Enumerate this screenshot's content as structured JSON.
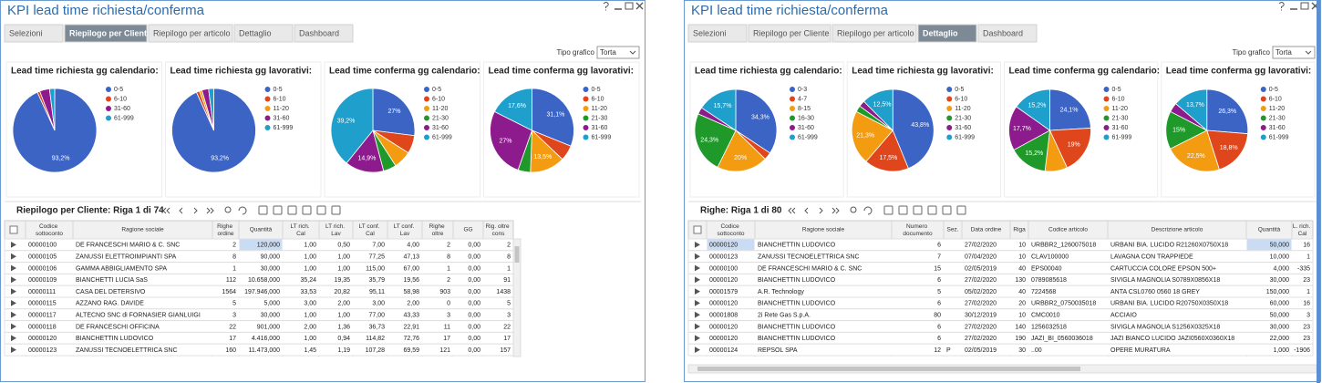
{
  "windows": [
    {
      "title": "KPI lead time richiesta/conferma",
      "tabs": [
        "Selezioni",
        "Riepilogo per Cliente",
        "Riepilogo per articolo",
        "Dettaglio",
        "Dashboard"
      ],
      "active_tab": 1,
      "chart_type_label": "Tipo grafico",
      "chart_type_value": "Torta",
      "charts": [
        {
          "type": "pie",
          "title": "Lead time richiesta gg calendario:",
          "categories": [
            "0-5",
            "6-10",
            "31-60",
            "61-999"
          ],
          "values": [
            93.2,
            1.0,
            3.8,
            2.0
          ],
          "value_labels": [
            "93,2%",
            null,
            null,
            null
          ],
          "colors": [
            "#3b64c4",
            "#e0461c",
            "#8e1b8e",
            "#1e9fcc"
          ]
        },
        {
          "type": "pie",
          "title": "Lead time richiesta gg lavorativi:",
          "categories": [
            "0-5",
            "6-10",
            "11-20",
            "31-60",
            "61-999"
          ],
          "values": [
            93.2,
            1.2,
            1.0,
            2.6,
            2.0
          ],
          "value_labels": [
            "93,2%",
            null,
            null,
            null,
            null
          ],
          "colors": [
            "#3b64c4",
            "#e0461c",
            "#f39c12",
            "#8e1b8e",
            "#1e9fcc"
          ]
        },
        {
          "type": "pie",
          "title": "Lead time conferma gg calendario:",
          "categories": [
            "0-5",
            "6-10",
            "11-20",
            "21-30",
            "31-60",
            "61-999"
          ],
          "values": [
            27,
            7,
            6.9,
            5,
            14.9,
            39.2
          ],
          "value_labels": [
            "27%",
            null,
            null,
            null,
            "14,9%",
            "39,2%"
          ],
          "colors": [
            "#3b64c4",
            "#e0461c",
            "#f39c12",
            "#1f9a2a",
            "#8e1b8e",
            "#1e9fcc"
          ]
        },
        {
          "type": "pie",
          "title": "Lead time conferma gg lavorativi:",
          "categories": [
            "0-5",
            "6-10",
            "11-20",
            "21-30",
            "31-60",
            "61-999"
          ],
          "values": [
            31.1,
            6,
            13.5,
            4.8,
            27,
            17.6
          ],
          "value_labels": [
            "31,1%",
            null,
            "13,5%",
            null,
            "27%",
            "17,6%"
          ],
          "colors": [
            "#3b64c4",
            "#e0461c",
            "#f39c12",
            "#1f9a2a",
            "#8e1b8e",
            "#1e9fcc"
          ]
        }
      ],
      "table": {
        "caption": "Riepilogo per Cliente: Riga 1 di 74",
        "columns": [
          "Codice sottoconto",
          "Ragione sociale",
          "Righe ordine",
          "Quantità",
          "LT rich. Cal",
          "LT rich. Lav",
          "LT conf. Cal",
          "LT conf. Lav",
          "Righe oltre",
          "GG",
          "Rig. oltre cons"
        ],
        "rows": [
          [
            "00000100",
            "DE FRANCESCHI MARIO & C. SNC",
            "2",
            "120,000",
            "1,00",
            "0,50",
            "7,00",
            "4,00",
            "2",
            "0,00",
            "2"
          ],
          [
            "00000105",
            "ZANUSSI ELETTROIMPIANTI SPA",
            "8",
            "90,000",
            "1,00",
            "1,00",
            "77,25",
            "47,13",
            "8",
            "0,00",
            "8"
          ],
          [
            "00000106",
            "GAMMA ABBIGLIAMENTO SPA",
            "1",
            "30,000",
            "1,00",
            "1,00",
            "115,00",
            "67,00",
            "1",
            "0,00",
            "1"
          ],
          [
            "00000109",
            "BIANCHETTI LUCIA SaS",
            "112",
            "10.658,000",
            "35,24",
            "19,35",
            "35,79",
            "19,56",
            "2",
            "0,00",
            "91"
          ],
          [
            "00000111",
            "CASA DEL DETERSIVO",
            "1564",
            "197.946,000",
            "33,53",
            "20,82",
            "95,11",
            "58,98",
            "903",
            "0,00",
            "1438"
          ],
          [
            "00000115",
            "AZZANO RAG. DAVIDE",
            "5",
            "5,000",
            "3,00",
            "2,00",
            "3,00",
            "2,00",
            "0",
            "0,00",
            "5"
          ],
          [
            "00000117",
            "ALTECNO SNC di FORNASIER GIANLUIGI",
            "3",
            "30,000",
            "1,00",
            "1,00",
            "77,00",
            "43,33",
            "3",
            "0,00",
            "3"
          ],
          [
            "00000118",
            "DE FRANCESCHI OFFICINA",
            "22",
            "901,000",
            "2,00",
            "1,36",
            "36,73",
            "22,91",
            "11",
            "0,00",
            "22"
          ],
          [
            "00000120",
            "BIANCHETTIN LUDOVICO",
            "17",
            "4.416,000",
            "1,00",
            "0,94",
            "114,82",
            "72,76",
            "17",
            "0,00",
            "17"
          ],
          [
            "00000123",
            "ZANUSSI TECNOELETTRICA SNC",
            "160",
            "11.473,000",
            "1,45",
            "1,19",
            "107,28",
            "69,59",
            "121",
            "0,00",
            "157"
          ]
        ]
      }
    },
    {
      "title": "KPI lead time richiesta/conferma",
      "tabs": [
        "Selezioni",
        "Riepilogo per Cliente",
        "Riepilogo per articolo",
        "Dettaglio",
        "Dashboard"
      ],
      "active_tab": 3,
      "chart_type_label": "Tipo grafico",
      "chart_type_value": "Torta",
      "charts": [
        {
          "type": "pie",
          "title": "Lead time richiesta gg calendario:",
          "categories": [
            "0-3",
            "4-7",
            "8-15",
            "16-30",
            "31-60",
            "61-999"
          ],
          "values": [
            34.3,
            3,
            20,
            24.3,
            2.7,
            15.7
          ],
          "value_labels": [
            "34,3%",
            null,
            "20%",
            "24,3%",
            null,
            "15,7%"
          ],
          "colors": [
            "#3b64c4",
            "#e0461c",
            "#f39c12",
            "#1f9a2a",
            "#8e1b8e",
            "#1e9fcc"
          ]
        },
        {
          "type": "pie",
          "title": "Lead time richiesta gg lavorativi:",
          "categories": [
            "0-5",
            "6-10",
            "11-20",
            "21-30",
            "31-60",
            "61-999"
          ],
          "values": [
            43.8,
            17.5,
            21.3,
            2.5,
            2.4,
            12.5
          ],
          "value_labels": [
            "43,8%",
            "17,5%",
            "21,3%",
            null,
            null,
            "12,5%"
          ],
          "colors": [
            "#3b64c4",
            "#e0461c",
            "#f39c12",
            "#1f9a2a",
            "#8e1b8e",
            "#1e9fcc"
          ]
        },
        {
          "type": "pie",
          "title": "Lead time conferma gg calendario:",
          "categories": [
            "0-5",
            "6-10",
            "11-20",
            "21-30",
            "31-60",
            "61-999"
          ],
          "values": [
            24.1,
            19,
            8.8,
            15.2,
            17.7,
            15.2
          ],
          "value_labels": [
            "24,1%",
            "19%",
            null,
            "15,2%",
            "17,7%",
            "15,2%"
          ],
          "colors": [
            "#3b64c4",
            "#e0461c",
            "#f39c12",
            "#1f9a2a",
            "#8e1b8e",
            "#1e9fcc"
          ]
        },
        {
          "type": "pie",
          "title": "Lead time conferma gg lavorativi:",
          "categories": [
            "0-5",
            "6-10",
            "11-20",
            "21-30",
            "31-60",
            "61-999"
          ],
          "values": [
            26.3,
            18.8,
            22.5,
            15,
            3.7,
            13.7
          ],
          "value_labels": [
            "26,3%",
            "18,8%",
            "22,5%",
            "15%",
            null,
            "13,7%"
          ],
          "colors": [
            "#3b64c4",
            "#e0461c",
            "#f39c12",
            "#1f9a2a",
            "#8e1b8e",
            "#1e9fcc"
          ]
        }
      ],
      "table": {
        "caption": "Righe: Riga 1 di 80",
        "columns": [
          "Codice sottoconto",
          "Ragione sociale",
          "Numero documento",
          "Sez.",
          "Data ordine",
          "Riga",
          "Codice articolo",
          "Descrizione articolo",
          "Quantità",
          "L. rich. Cal"
        ],
        "rows": [
          [
            "00000120",
            "BIANCHETTIN LUDOVICO",
            "6",
            null,
            "27/02/2020",
            "10",
            "URBBR2_1260075018",
            "URBANI BIA. LUCIDO R21260X0750X18",
            "50,000",
            "16"
          ],
          [
            "00000123",
            "ZANUSSI TECNOELETTRICA SNC",
            "7",
            null,
            "07/04/2020",
            "10",
            "CLAV100000",
            "LAVAGNA CON TRAPPIEDE",
            "10,000",
            "1"
          ],
          [
            "00000100",
            "DE FRANCESCHI MARIO & C. SNC",
            "15",
            null,
            "02/05/2019",
            "40",
            "EPS00040",
            "CARTUCCIA COLORE EPSON 500+",
            "4,000",
            "-335"
          ],
          [
            "00000120",
            "BIANCHETTIN LUDOVICO",
            "6",
            null,
            "27/02/2020",
            "130",
            "0789085618",
            "SIVIGLA MAGNOLIA S0789X0856X18",
            "30,000",
            "23"
          ],
          [
            "00001579",
            "A.R. Technology",
            "5",
            null,
            "05/02/2020",
            "40",
            "7224568",
            "ANTA CSL0760 0560 18 GREY",
            "150,000",
            "1"
          ],
          [
            "00000120",
            "BIANCHETTIN LUDOVICO",
            "6",
            null,
            "27/02/2020",
            "20",
            "URBBR2_0750035018",
            "URBANI BIA. LUCIDO R20750X0350X18",
            "60,000",
            "16"
          ],
          [
            "00001808",
            "2i Rete Gas S.p.A.",
            "80",
            null,
            "30/12/2019",
            "10",
            "CMC0010",
            "ACCIAIO",
            "50,000",
            "3"
          ],
          [
            "00000120",
            "BIANCHETTIN LUDOVICO",
            "6",
            null,
            "27/02/2020",
            "140",
            "1256032518",
            "SIVIGLA MAGNOLIA S1256X0325X18",
            "30,000",
            "23"
          ],
          [
            "00000120",
            "BIANCHETTIN LUDOVICO",
            "6",
            null,
            "27/02/2020",
            "190",
            "JAZI_BI_0560036018",
            "JAZI BIANCO LUCIDO JAZI0560X0360X18",
            "22,000",
            "23"
          ],
          [
            "00000124",
            "REPSOL SPA",
            "12",
            "P",
            "02/05/2019",
            "30",
            "..00",
            "OPERE MURATURA",
            "1,000",
            "-1906"
          ]
        ]
      }
    }
  ]
}
